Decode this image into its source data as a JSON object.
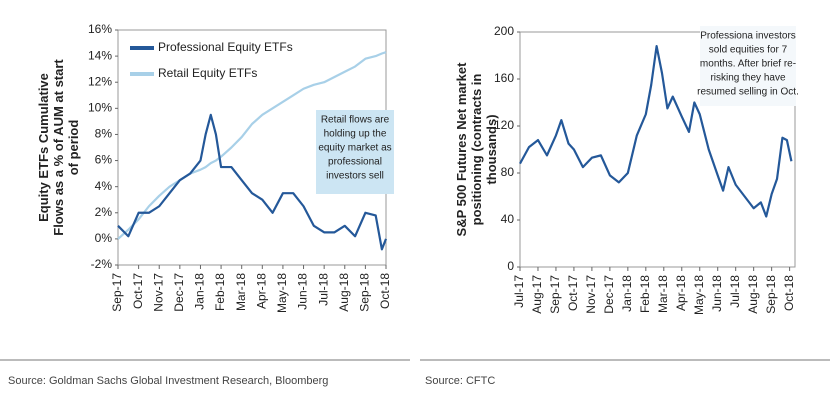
{
  "chart_data": [
    {
      "type": "line",
      "ylabel": [
        "Equity ETFs Cumulative",
        "Flows as a % of AUM at start",
        "of period"
      ],
      "x": [
        0,
        0.5,
        1,
        1.5,
        2,
        2.5,
        3,
        3.5,
        4,
        4.25,
        4.5,
        4.75,
        5,
        5.5,
        6,
        6.5,
        7,
        7.5,
        8,
        8.5,
        9,
        9.5,
        10,
        10.5,
        11,
        11.5,
        12,
        12.5,
        12.8,
        13
      ],
      "series": [
        {
          "name": "Professional Equity ETFs",
          "color": "#245899",
          "values": [
            1.0,
            0.2,
            2.0,
            2.0,
            2.5,
            3.5,
            4.5,
            5.0,
            6.0,
            8.0,
            9.5,
            8.0,
            5.5,
            5.5,
            4.5,
            3.5,
            3.0,
            2.0,
            3.5,
            3.5,
            2.5,
            1.0,
            0.5,
            0.5,
            1.0,
            0.2,
            2.0,
            1.8,
            -0.8,
            0.0
          ]
        },
        {
          "name": "Retail Equity ETFs",
          "color": "#a8d0e8",
          "values": [
            0.0,
            0.7,
            1.5,
            2.5,
            3.3,
            4.0,
            4.5,
            5.0,
            5.3,
            5.5,
            5.8,
            6.0,
            6.3,
            7.0,
            7.8,
            8.8,
            9.5,
            10.0,
            10.5,
            11.0,
            11.5,
            11.8,
            12.0,
            12.4,
            12.8,
            13.2,
            13.8,
            14.0,
            14.2,
            14.3
          ]
        }
      ],
      "xlim": [
        0,
        13
      ],
      "xticks": [
        {
          "value": 0,
          "label": "Sep-17"
        },
        {
          "value": 1,
          "label": "Oct-17"
        },
        {
          "value": 2,
          "label": "Nov-17"
        },
        {
          "value": 3,
          "label": "Dec-17"
        },
        {
          "value": 4,
          "label": "Jan-18"
        },
        {
          "value": 5,
          "label": "Feb-18"
        },
        {
          "value": 6,
          "label": "Mar-18"
        },
        {
          "value": 7,
          "label": "Apr-18"
        },
        {
          "value": 8,
          "label": "May-18"
        },
        {
          "value": 9,
          "label": "Jun-18"
        },
        {
          "value": 10,
          "label": "Jul-18"
        },
        {
          "value": 11,
          "label": "Aug-18"
        },
        {
          "value": 12,
          "label": "Sep-18"
        },
        {
          "value": 13,
          "label": "Oct-18"
        }
      ],
      "ylim": [
        -2,
        16
      ],
      "yticks": [
        {
          "value": -2,
          "label": "-2%"
        },
        {
          "value": 0,
          "label": "0%"
        },
        {
          "value": 2,
          "label": "2%"
        },
        {
          "value": 4,
          "label": "4%"
        },
        {
          "value": 6,
          "label": "6%"
        },
        {
          "value": 8,
          "label": "8%"
        },
        {
          "value": 10,
          "label": "10%"
        },
        {
          "value": 12,
          "label": "12%"
        },
        {
          "value": 14,
          "label": "14%"
        },
        {
          "value": 16,
          "label": "16%"
        }
      ],
      "legend": "upper left",
      "annotation": [
        "Retail flows are",
        "holding up the",
        "equity market as",
        "professional",
        "investors sell"
      ],
      "source": "Source: Goldman Sachs Global Investment Research, Bloomberg"
    },
    {
      "type": "line",
      "ylabel": [
        "S&P 500 Futures Net market",
        "positioning (contracts in",
        "thousands)"
      ],
      "x": [
        0,
        0.5,
        1,
        1.5,
        2,
        2.3,
        2.7,
        3,
        3.5,
        4,
        4.5,
        5,
        5.5,
        6,
        6.5,
        7,
        7.3,
        7.6,
        7.9,
        8.2,
        8.5,
        9,
        9.4,
        9.7,
        10,
        10.5,
        11,
        11.3,
        11.6,
        12,
        12.5,
        13,
        13.4,
        13.7,
        14,
        14.3,
        14.6,
        14.85,
        15.1
      ],
      "values": [
        88,
        102,
        108,
        95,
        112,
        125,
        105,
        100,
        85,
        93,
        95,
        78,
        72,
        80,
        112,
        130,
        155,
        188,
        165,
        135,
        145,
        128,
        115,
        140,
        130,
        100,
        78,
        65,
        85,
        70,
        60,
        50,
        55,
        43,
        62,
        75,
        110,
        108,
        90
      ],
      "color": "#245899",
      "xlim": [
        0,
        15.3
      ],
      "xticks": [
        {
          "value": 0,
          "label": "Jul-17"
        },
        {
          "value": 1,
          "label": "Aug-17"
        },
        {
          "value": 2,
          "label": "Sep-17"
        },
        {
          "value": 3,
          "label": "Oct-17"
        },
        {
          "value": 4,
          "label": "Nov-17"
        },
        {
          "value": 5,
          "label": "Dec-17"
        },
        {
          "value": 6,
          "label": "Jan-18"
        },
        {
          "value": 7,
          "label": "Feb-18"
        },
        {
          "value": 8,
          "label": "Mar-18"
        },
        {
          "value": 9,
          "label": "Apr-18"
        },
        {
          "value": 10,
          "label": "May-18"
        },
        {
          "value": 11,
          "label": "Jun-18"
        },
        {
          "value": 12,
          "label": "Jul-18"
        },
        {
          "value": 13,
          "label": "Aug-18"
        },
        {
          "value": 14,
          "label": "Sep-18"
        },
        {
          "value": 15,
          "label": "Oct-18"
        }
      ],
      "ylim": [
        0,
        200
      ],
      "yticks": [
        0,
        40,
        80,
        120,
        160,
        200
      ],
      "annotation": [
        "Professiona investors",
        "sold equities for 7",
        "months. After brief re-",
        "risking they have",
        "resumed selling in Oct."
      ],
      "source": "Source: CFTC"
    }
  ]
}
